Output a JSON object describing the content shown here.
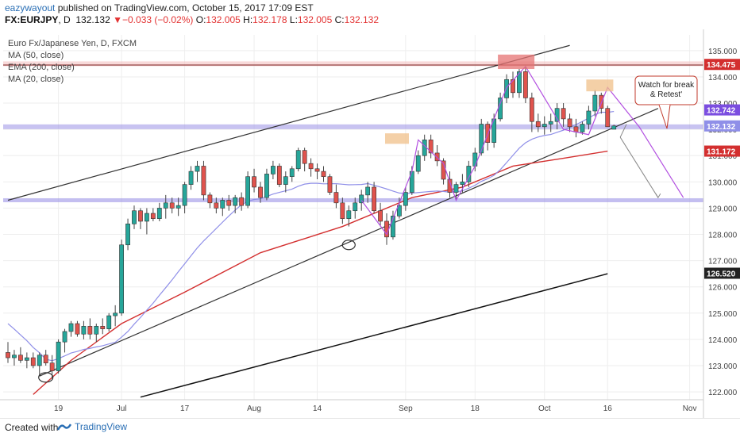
{
  "header": {
    "user": "eazywayout",
    "published": "published on TradingView.com, October 15, 2017 17:09 EST",
    "symbol": "FX:EURJPY",
    "interval": "D",
    "last": "132.132",
    "change_arrow": "▼",
    "change": "−0.033 (−0.02%)",
    "o_label": "O:",
    "o_val": "132.005",
    "h_label": "H:",
    "h_val": "132.178",
    "l_label": "L:",
    "l_val": "132.005",
    "c_label": "C:",
    "c_val": "132.132"
  },
  "legend": {
    "title": "Euro Fx/Japanese Yen, D, FXCM",
    "ma50": "MA (50, close)",
    "ema200": "EMA (200, close)",
    "ma20": "MA (20, close)"
  },
  "annotation": "Watch for break & Retest'",
  "footer": {
    "created": "Created with",
    "brand": "TradingView"
  },
  "colors": {
    "up": "#26a69a",
    "down": "#e0534d",
    "ma20": "#8f8fe8",
    "ema200": "#d32f2f",
    "ma50": "#222222",
    "zone": "#9b92e6",
    "resist": "#e57373",
    "pattern": "#b24fe0"
  },
  "chart_data": {
    "type": "candlestick",
    "ylim": [
      121.7,
      135.6
    ],
    "y_ticks": [
      "122.000",
      "123.000",
      "124.000",
      "125.000",
      "126.000",
      "127.000",
      "128.000",
      "129.000",
      "130.000",
      "131.000",
      "132.000",
      "133.000",
      "134.000",
      "135.000"
    ],
    "x_ticks": [
      "19",
      "Jul",
      "17",
      "Aug",
      "14",
      "Sep",
      "18",
      "Oct",
      "16",
      "Nov"
    ],
    "price_labels": [
      {
        "value": 134.475,
        "text": "134.475",
        "color": "#d32f2f"
      },
      {
        "value": 132.742,
        "text": "132.742",
        "color": "#7b4ee0"
      },
      {
        "value": 132.132,
        "text": "132.132",
        "color": "#8f8fe8"
      },
      {
        "value": 131.172,
        "text": "131.172",
        "color": "#d32f2f"
      },
      {
        "value": 126.52,
        "text": "126.520",
        "color": "#222222"
      }
    ],
    "candles": [
      [
        123.5,
        123.9,
        123.1,
        123.3
      ],
      [
        123.3,
        123.6,
        123.0,
        123.4
      ],
      [
        123.4,
        123.7,
        123.1,
        123.2
      ],
      [
        123.2,
        123.5,
        122.9,
        123.3
      ],
      [
        123.3,
        123.5,
        122.9,
        123.0
      ],
      [
        123.0,
        123.5,
        122.6,
        123.4
      ],
      [
        123.4,
        123.6,
        123.0,
        123.1
      ],
      [
        123.1,
        123.4,
        122.5,
        122.8
      ],
      [
        122.8,
        124.0,
        122.7,
        123.9
      ],
      [
        123.9,
        124.4,
        123.5,
        124.3
      ],
      [
        124.3,
        124.7,
        124.1,
        124.6
      ],
      [
        124.6,
        124.7,
        124.1,
        124.2
      ],
      [
        124.2,
        124.7,
        124.0,
        124.5
      ],
      [
        124.5,
        124.8,
        124.0,
        124.2
      ],
      [
        124.2,
        124.6,
        123.9,
        124.5
      ],
      [
        124.5,
        124.8,
        124.2,
        124.4
      ],
      [
        124.4,
        125.0,
        124.3,
        124.9
      ],
      [
        124.9,
        125.3,
        124.5,
        125.0
      ],
      [
        125.0,
        127.8,
        124.9,
        127.6
      ],
      [
        127.6,
        128.6,
        127.4,
        128.4
      ],
      [
        128.4,
        129.1,
        128.2,
        128.9
      ],
      [
        128.9,
        129.0,
        128.2,
        128.5
      ],
      [
        128.5,
        129.0,
        128.0,
        128.8
      ],
      [
        128.8,
        129.0,
        128.5,
        128.6
      ],
      [
        128.6,
        129.2,
        128.5,
        129.0
      ],
      [
        129.0,
        129.5,
        128.6,
        129.2
      ],
      [
        129.2,
        129.4,
        128.8,
        129.0
      ],
      [
        129.0,
        129.4,
        128.7,
        129.1
      ],
      [
        129.1,
        130.0,
        128.8,
        129.9
      ],
      [
        129.9,
        130.6,
        129.7,
        130.4
      ],
      [
        130.4,
        130.8,
        130.0,
        130.6
      ],
      [
        130.6,
        130.8,
        129.3,
        129.5
      ],
      [
        129.5,
        129.6,
        129.0,
        129.2
      ],
      [
        129.2,
        129.4,
        128.8,
        129.0
      ],
      [
        129.0,
        129.4,
        128.7,
        129.3
      ],
      [
        129.3,
        129.5,
        128.9,
        129.1
      ],
      [
        129.1,
        129.5,
        128.8,
        129.4
      ],
      [
        129.4,
        129.6,
        128.9,
        129.1
      ],
      [
        129.1,
        130.4,
        129.0,
        130.2
      ],
      [
        130.2,
        130.5,
        129.6,
        129.8
      ],
      [
        129.8,
        130.0,
        129.2,
        129.4
      ],
      [
        129.4,
        130.5,
        129.3,
        130.3
      ],
      [
        130.3,
        130.8,
        130.1,
        130.6
      ],
      [
        130.6,
        130.7,
        129.8,
        129.9
      ],
      [
        129.9,
        130.4,
        129.6,
        130.2
      ],
      [
        130.2,
        130.6,
        130.0,
        130.5
      ],
      [
        130.5,
        131.3,
        130.4,
        131.2
      ],
      [
        131.2,
        131.3,
        130.4,
        130.7
      ],
      [
        130.7,
        130.9,
        130.2,
        130.5
      ],
      [
        130.5,
        130.7,
        130.1,
        130.4
      ],
      [
        130.4,
        130.6,
        130.0,
        130.2
      ],
      [
        130.2,
        130.3,
        129.5,
        129.6
      ],
      [
        129.6,
        129.9,
        129.0,
        129.2
      ],
      [
        129.2,
        129.4,
        128.4,
        128.6
      ],
      [
        128.6,
        129.1,
        128.3,
        128.9
      ],
      [
        128.9,
        129.4,
        128.6,
        129.2
      ],
      [
        129.2,
        129.7,
        128.9,
        129.5
      ],
      [
        129.5,
        130.0,
        129.2,
        129.8
      ],
      [
        129.8,
        130.0,
        128.8,
        128.9
      ],
      [
        128.9,
        129.2,
        128.3,
        128.5
      ],
      [
        128.5,
        128.8,
        127.6,
        127.9
      ],
      [
        127.9,
        128.9,
        127.8,
        128.7
      ],
      [
        128.7,
        129.4,
        128.6,
        129.1
      ],
      [
        129.1,
        129.8,
        128.9,
        129.6
      ],
      [
        129.6,
        130.6,
        129.5,
        130.4
      ],
      [
        130.4,
        131.2,
        130.3,
        131.0
      ],
      [
        131.0,
        131.8,
        130.8,
        131.6
      ],
      [
        131.6,
        131.8,
        130.9,
        131.1
      ],
      [
        131.1,
        131.4,
        130.6,
        130.8
      ],
      [
        130.8,
        130.9,
        129.9,
        130.1
      ],
      [
        130.1,
        130.4,
        129.4,
        129.6
      ],
      [
        129.6,
        130.0,
        129.3,
        129.9
      ],
      [
        129.9,
        130.3,
        129.6,
        130.0
      ],
      [
        130.0,
        130.8,
        129.8,
        130.6
      ],
      [
        130.6,
        131.3,
        130.4,
        131.1
      ],
      [
        131.1,
        132.4,
        131.0,
        132.2
      ],
      [
        132.2,
        132.3,
        131.2,
        131.5
      ],
      [
        131.5,
        132.6,
        131.3,
        132.4
      ],
      [
        132.4,
        133.4,
        132.3,
        133.2
      ],
      [
        133.2,
        134.1,
        133.0,
        133.9
      ],
      [
        133.9,
        134.2,
        133.2,
        133.4
      ],
      [
        133.4,
        134.3,
        133.2,
        134.2
      ],
      [
        134.2,
        134.4,
        133.0,
        133.2
      ],
      [
        133.2,
        133.4,
        131.9,
        132.3
      ],
      [
        132.3,
        132.6,
        131.9,
        132.1
      ],
      [
        132.1,
        132.5,
        131.8,
        132.2
      ],
      [
        132.2,
        132.6,
        131.9,
        132.3
      ],
      [
        132.3,
        133.0,
        132.0,
        132.8
      ],
      [
        132.8,
        133.0,
        132.1,
        132.4
      ],
      [
        132.4,
        132.6,
        131.9,
        132.1
      ],
      [
        132.1,
        132.4,
        131.7,
        131.9
      ],
      [
        131.9,
        132.3,
        131.8,
        132.2
      ],
      [
        132.2,
        132.9,
        132.0,
        132.7
      ],
      [
        132.7,
        133.5,
        132.5,
        133.3
      ],
      [
        133.3,
        133.4,
        132.6,
        132.8
      ],
      [
        132.8,
        132.9,
        132.1,
        132.1
      ],
      [
        132.005,
        132.178,
        132.005,
        132.132
      ]
    ],
    "series": [
      {
        "name": "MA (50, close)",
        "color": "#222222"
      },
      {
        "name": "EMA (200, close)",
        "color": "#d32f2f"
      },
      {
        "name": "MA (20, close)",
        "color": "#8f8fe8"
      }
    ],
    "levels": [
      {
        "kind": "resistance",
        "value": 134.5
      },
      {
        "kind": "support",
        "value": 132.1
      },
      {
        "kind": "support",
        "value": 129.3
      }
    ]
  }
}
